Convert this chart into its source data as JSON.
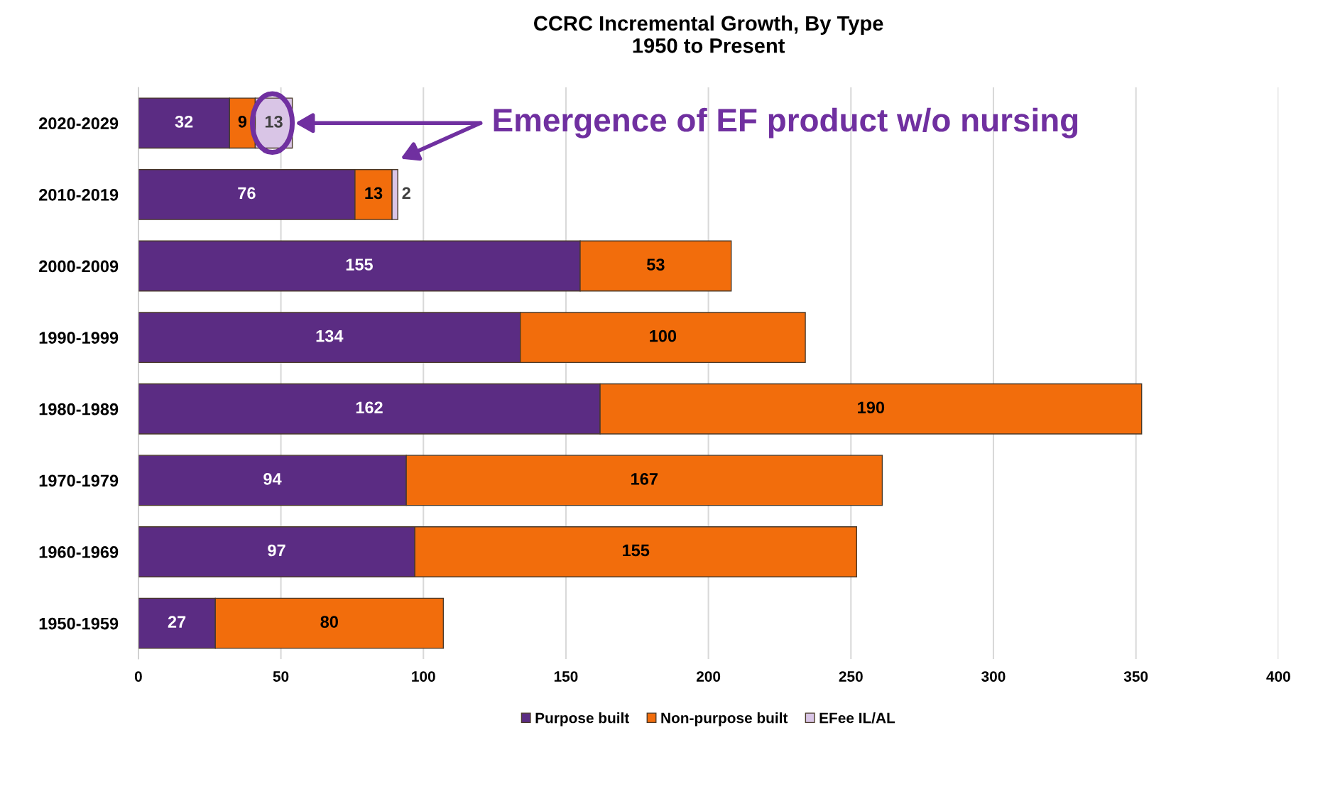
{
  "chart_data": {
    "type": "bar",
    "orientation": "horizontal",
    "stacked": true,
    "title": "CCRC Incremental Growth, By Type\n1950 to Present",
    "categories": [
      "2020-2029",
      "2010-2019",
      "2000-2009",
      "1990-1999",
      "1980-1989",
      "1970-1979",
      "1960-1969",
      "1950-1959"
    ],
    "series": [
      {
        "name": "Purpose built",
        "color": "#5b2c83",
        "values": [
          32,
          76,
          155,
          134,
          162,
          94,
          97,
          27
        ]
      },
      {
        "name": "Non-purpose built",
        "color": "#f26d0c",
        "values": [
          9,
          13,
          53,
          100,
          190,
          167,
          155,
          80
        ]
      },
      {
        "name": "EFee IL/AL",
        "color": "#d9c5e6",
        "values": [
          13,
          2,
          null,
          null,
          null,
          null,
          null,
          null
        ]
      }
    ],
    "data_labels": true,
    "xlim": [
      0,
      400
    ],
    "xticks": [
      0,
      50,
      100,
      150,
      200,
      250,
      300,
      350,
      400
    ],
    "grid": "x",
    "legend": "bottom",
    "annotations": [
      "Emergence of EF product w/o nursing"
    ]
  }
}
